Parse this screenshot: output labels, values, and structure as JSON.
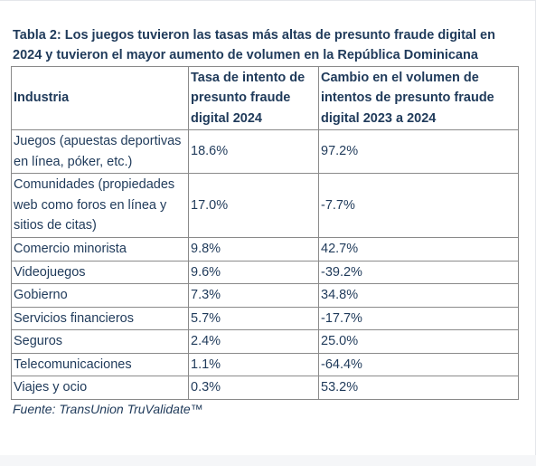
{
  "caption": {
    "line1": "Tabla 2: Los juegos tuvieron las tasas más altas de presunto fraude digital en",
    "line2": "2024 y tuvieron el mayor aumento de volumen en la República Dominicana"
  },
  "table": {
    "headers": [
      "Industria",
      "Tasa de intento de presunto fraude digital 2024",
      "Cambio en el volumen de intentos de presunto fraude digital 2023 a 2024"
    ],
    "rows": [
      {
        "industry": "Juegos (apuestas deportivas en línea, póker, etc.)",
        "rate": "18.6%",
        "change": "97.2%"
      },
      {
        "industry": "Comunidades (propiedades web como foros en línea y sitios de citas)",
        "rate": "17.0%",
        "change": "-7.7%"
      },
      {
        "industry": "Comercio minorista",
        "rate": "9.8%",
        "change": "42.7%"
      },
      {
        "industry": "Videojuegos",
        "rate": "9.6%",
        "change": "-39.2%"
      },
      {
        "industry": "Gobierno",
        "rate": "7.3%",
        "change": "34.8%"
      },
      {
        "industry": "Servicios financieros",
        "rate": "5.7%",
        "change": "-17.7%"
      },
      {
        "industry": "Seguros",
        "rate": "2.4%",
        "change": "25.0%"
      },
      {
        "industry": "Telecomunicaciones",
        "rate": "1.1%",
        "change": "-64.4%"
      },
      {
        "industry": "Viajes y ocio",
        "rate": "0.3%",
        "change": "53.2%"
      }
    ]
  },
  "footnote": "Fuente: TransUnion TruValidate™"
}
